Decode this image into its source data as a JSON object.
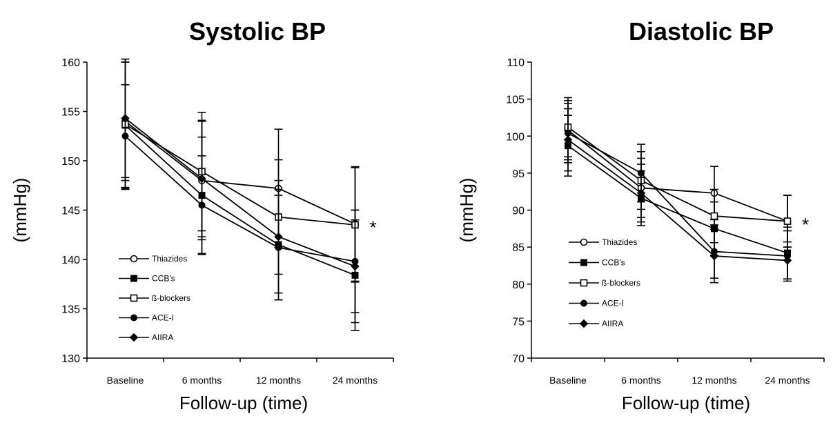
{
  "chart_data": [
    {
      "type": "line",
      "title": "Systolic BP",
      "xlabel": "Follow-up (time)",
      "ylabel": "(mmHg)",
      "categories": [
        "Baseline",
        "6 months",
        "12 months",
        "24 months"
      ],
      "ylim": [
        130,
        160
      ],
      "yticks": [
        130,
        135,
        140,
        145,
        150,
        155,
        160
      ],
      "grid": false,
      "legend_position": "lower-left",
      "annotation": "*",
      "series": [
        {
          "name": "Thiazides",
          "marker": "circle-open",
          "values": [
            154.0,
            148.0,
            147.2,
            143.6
          ],
          "err": [
            6.0,
            6.0,
            6.0,
            5.8
          ]
        },
        {
          "name": "CCB's",
          "marker": "square-filled",
          "values": [
            153.6,
            146.5,
            141.5,
            138.4
          ],
          "err": [
            6.4,
            5.9,
            5.6,
            5.6
          ]
        },
        {
          "name": "ß-blockers",
          "marker": "square-open",
          "values": [
            153.7,
            148.9,
            144.3,
            143.5
          ],
          "err": [
            6.6,
            6.0,
            5.8,
            5.8
          ]
        },
        {
          "name": "ACE-I",
          "marker": "circle-filled",
          "values": [
            152.5,
            145.5,
            141.2,
            139.8
          ],
          "err": [
            5.2,
            5.0,
            5.3,
            5.2
          ]
        },
        {
          "name": "AIIRA",
          "marker": "diamond-filled",
          "values": [
            154.3,
            148.2,
            142.3,
            139.3
          ],
          "err": [
            6.0,
            5.9,
            5.7,
            5.7
          ]
        }
      ]
    },
    {
      "type": "line",
      "title": "Diastolic BP",
      "xlabel": "Follow-up (time)",
      "ylabel": "(mmHg)",
      "categories": [
        "Baseline",
        "6 months",
        "12 months",
        "24 months"
      ],
      "ylim": [
        70,
        110
      ],
      "yticks": [
        70,
        75,
        80,
        85,
        90,
        95,
        100,
        105,
        110
      ],
      "grid": false,
      "legend_position": "lower-left",
      "annotation": "*",
      "series": [
        {
          "name": "Thiazides",
          "marker": "circle-open",
          "values": [
            100.8,
            93.0,
            92.3,
            88.5
          ],
          "err": [
            4.0,
            4.0,
            3.6,
            3.5
          ]
        },
        {
          "name": "CCB's",
          "marker": "square-filled",
          "values": [
            98.7,
            91.6,
            87.5,
            84.2
          ],
          "err": [
            4.1,
            3.7,
            3.6,
            3.5
          ]
        },
        {
          "name": "ß-blockers",
          "marker": "square-open",
          "values": [
            101.2,
            94.0,
            89.2,
            88.5
          ],
          "err": [
            4.0,
            3.9,
            3.6,
            3.5
          ]
        },
        {
          "name": "ACE-I",
          "marker": "circle-filled",
          "values": [
            100.4,
            95.0,
            84.4,
            83.8
          ],
          "err": [
            4.0,
            3.9,
            3.6,
            3.4
          ]
        },
        {
          "name": "AIIRA",
          "marker": "diamond-filled",
          "values": [
            99.5,
            92.3,
            83.8,
            83.2
          ],
          "err": [
            4.2,
            3.9,
            3.6,
            2.5
          ]
        }
      ]
    }
  ]
}
